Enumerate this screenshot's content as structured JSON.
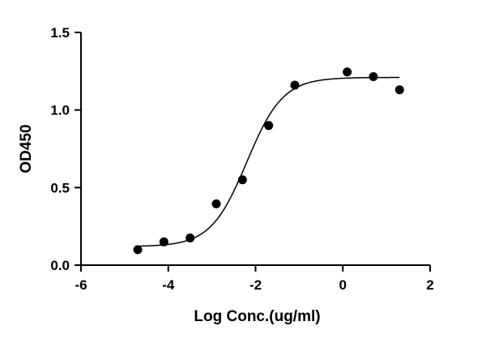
{
  "chart_data": {
    "type": "scatter",
    "title": "",
    "xlabel": "Log Conc.(ug/ml)",
    "ylabel": "OD450",
    "xlim": [
      -6,
      2
    ],
    "ylim": [
      0,
      1.5
    ],
    "x_ticks": [
      -6,
      -4,
      -2,
      0,
      2
    ],
    "x_tick_labels": [
      "-6",
      "-4",
      "-2",
      "0",
      "2"
    ],
    "y_ticks": [
      0,
      0.5,
      1.0,
      1.5
    ],
    "y_tick_labels": [
      "0.0",
      "0.5",
      "1.0",
      "1.5"
    ],
    "grid": false,
    "legend": "none",
    "series": [
      {
        "points": [
          {
            "x": -4.7,
            "y": 0.1
          },
          {
            "x": -4.1,
            "y": 0.15
          },
          {
            "x": -3.5,
            "y": 0.175
          },
          {
            "x": -2.9,
            "y": 0.395
          },
          {
            "x": -2.3,
            "y": 0.55
          },
          {
            "x": -1.7,
            "y": 0.9
          },
          {
            "x": -1.1,
            "y": 1.16
          },
          {
            "x": 0.1,
            "y": 1.245
          },
          {
            "x": 0.7,
            "y": 1.215
          },
          {
            "x": 1.3,
            "y": 1.13
          }
        ]
      }
    ],
    "fit_curve": {
      "type": "4PL",
      "bottom": 0.12,
      "top": 1.21,
      "log_ec50": -2.2,
      "hill_slope": 1.05,
      "x_range": [
        -4.7,
        1.3
      ]
    },
    "marker_color": "#000000",
    "line_color": "#000000"
  }
}
